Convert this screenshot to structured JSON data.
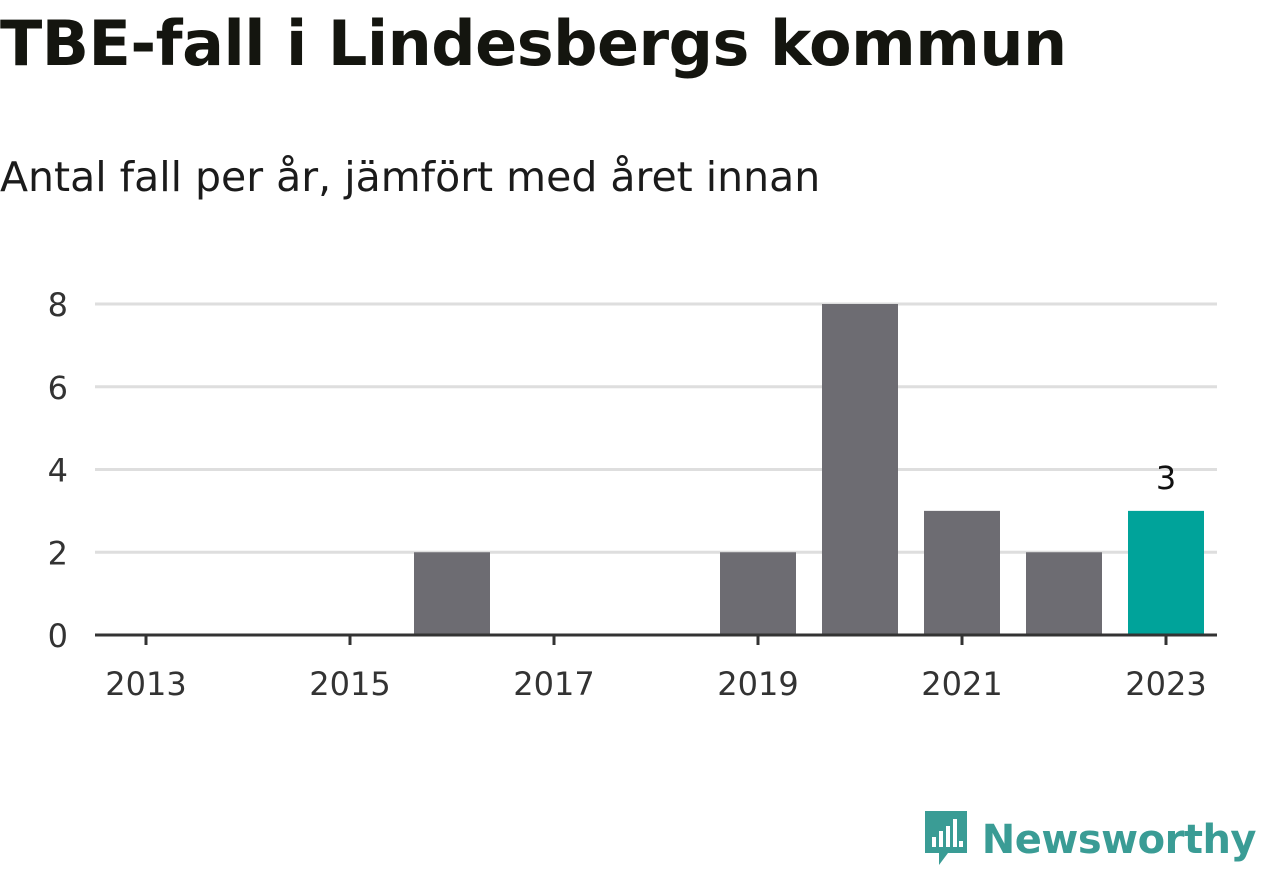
{
  "header": {
    "title": "TBE-fall i Lindesbergs kommun",
    "subtitle": "Antal fall per år, jämfört med året innan"
  },
  "brand": {
    "name": "Newsworthy",
    "icon": "newsworthy-logo-icon",
    "color": "#3a9c95"
  },
  "colors": {
    "bar": "#6d6c72",
    "highlight": "#00a39a",
    "grid": "#dedede",
    "axis": "#333333"
  },
  "chart_data": {
    "type": "bar",
    "title": "TBE-fall i Lindesbergs kommun",
    "subtitle": "Antal fall per år, jämfört med året innan",
    "xlabel": "",
    "ylabel": "",
    "categories": [
      "2013",
      "2014",
      "2015",
      "2016",
      "2017",
      "2018",
      "2019",
      "2020",
      "2021",
      "2022",
      "2023"
    ],
    "values": [
      0,
      0,
      0,
      2,
      0,
      0,
      2,
      8,
      3,
      2,
      3
    ],
    "highlight_index": 10,
    "x_tick_labels": [
      "2013",
      "2015",
      "2017",
      "2019",
      "2021",
      "2023"
    ],
    "y_ticks": [
      0,
      2,
      4,
      6,
      8
    ],
    "ylim": [
      0,
      8
    ],
    "data_labels": [
      {
        "category": "2023",
        "text": "3"
      }
    ],
    "grid": true,
    "legend": "none"
  }
}
